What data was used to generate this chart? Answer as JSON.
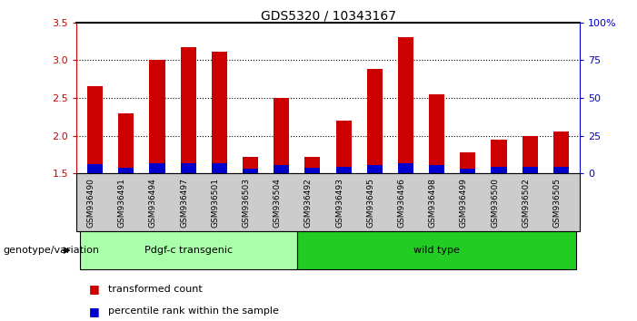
{
  "title": "GDS5320 / 10343167",
  "samples": [
    "GSM936490",
    "GSM936491",
    "GSM936494",
    "GSM936497",
    "GSM936501",
    "GSM936503",
    "GSM936504",
    "GSM936492",
    "GSM936493",
    "GSM936495",
    "GSM936496",
    "GSM936498",
    "GSM936499",
    "GSM936500",
    "GSM936502",
    "GSM936505"
  ],
  "transformed_count": [
    2.65,
    2.3,
    3.0,
    3.17,
    3.11,
    1.72,
    2.5,
    1.72,
    2.2,
    2.88,
    3.3,
    2.55,
    1.78,
    1.95,
    2.0,
    2.05
  ],
  "percentile_rank_scaled": [
    0.12,
    0.08,
    0.13,
    0.14,
    0.13,
    0.06,
    0.11,
    0.08,
    0.09,
    0.11,
    0.13,
    0.11,
    0.06,
    0.09,
    0.09,
    0.09
  ],
  "bar_base": 1.5,
  "ylim_left": [
    1.5,
    3.5
  ],
  "ylim_right": [
    0,
    100
  ],
  "yticks_left": [
    1.5,
    2.0,
    2.5,
    3.0,
    3.5
  ],
  "yticks_right": [
    0,
    25,
    50,
    75,
    100
  ],
  "ytick_labels_right": [
    "0",
    "25",
    "50",
    "75",
    "100%"
  ],
  "grid_lines": [
    2.0,
    2.5,
    3.0
  ],
  "groups": [
    {
      "label": "Pdgf-c transgenic",
      "start": 0,
      "end": 7,
      "color": "#aaffaa"
    },
    {
      "label": "wild type",
      "start": 7,
      "end": 16,
      "color": "#22cc22"
    }
  ],
  "group_label_prefix": "genotype/variation",
  "red_color": "#CC0000",
  "blue_color": "#0000CC",
  "background_color": "#FFFFFF",
  "bar_width": 0.5,
  "tick_label_bg": "#CCCCCC",
  "legend_items": [
    {
      "color": "#CC0000",
      "label": "transformed count"
    },
    {
      "color": "#0000CC",
      "label": "percentile rank within the sample"
    }
  ]
}
